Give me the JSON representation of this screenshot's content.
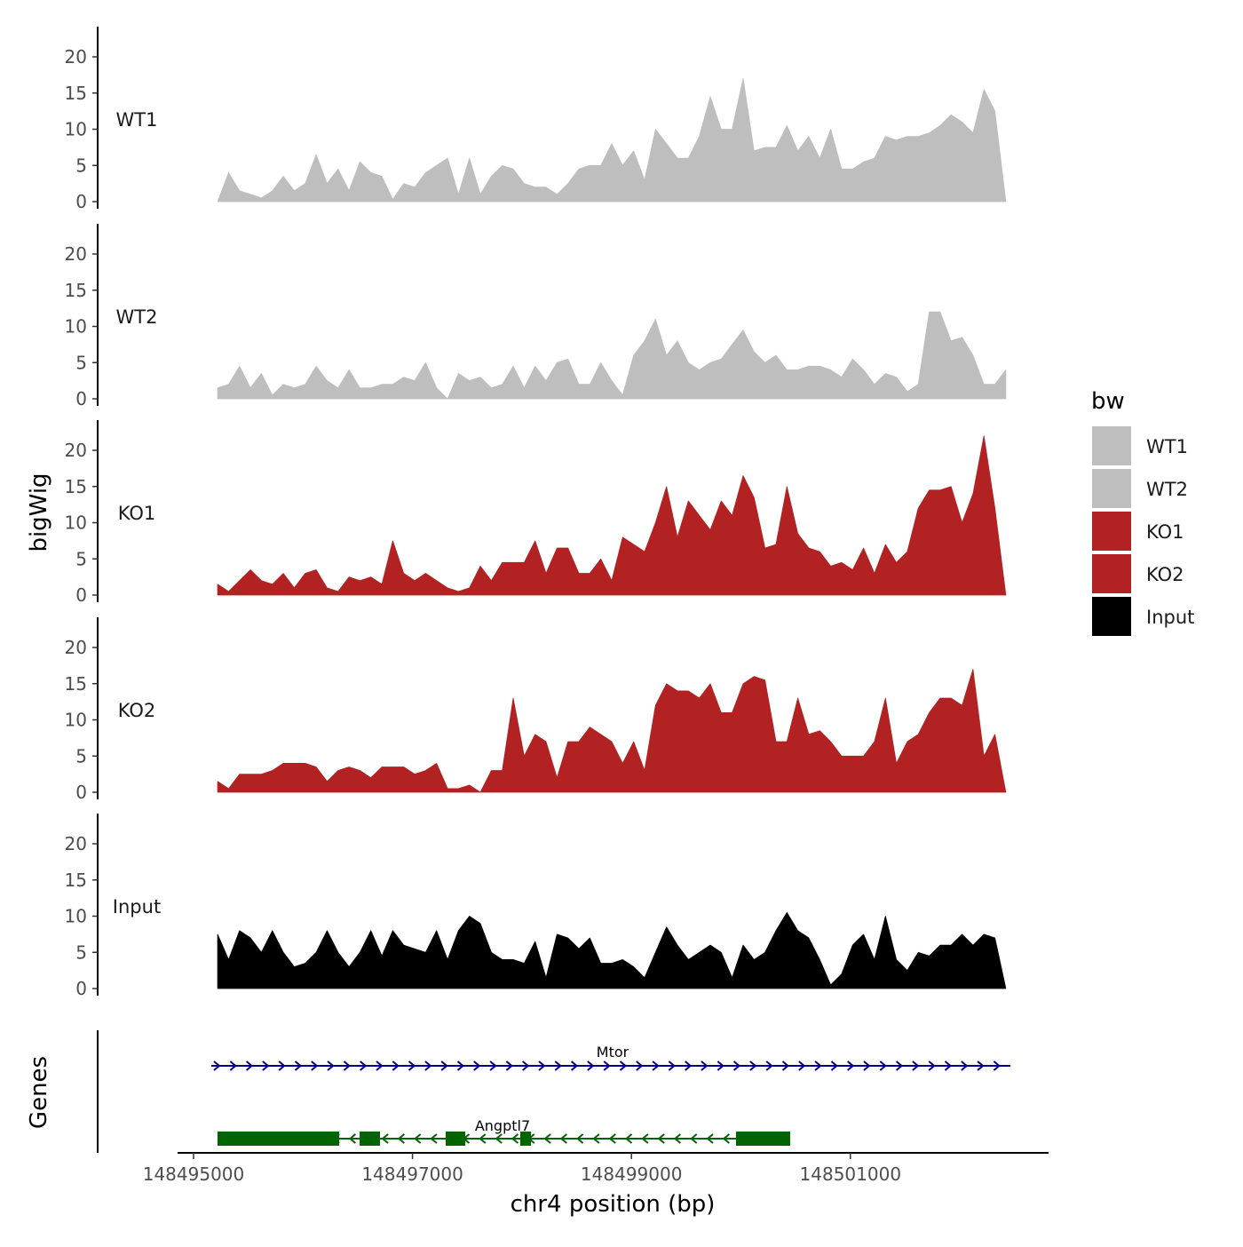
{
  "chart_data": {
    "type": "area",
    "ylabel": "bigWig",
    "xlabel": "chr4 position (bp)",
    "genes_label": "Genes",
    "ylim": [
      0,
      24
    ],
    "yticks": [
      "0",
      "5",
      "10",
      "15",
      "20"
    ],
    "xlim": [
      148494850,
      148503000
    ],
    "xticks": [
      148495000,
      148497000,
      148499000,
      148501000
    ],
    "xtick_labels": [
      "148495000",
      "148497000",
      "148499000",
      "148501000"
    ],
    "x_start": 148495220,
    "x_end": 148502420,
    "legend": {
      "title": "bw",
      "position": "right",
      "entries": [
        {
          "label": "WT1",
          "color": "#bebebe"
        },
        {
          "label": "WT2",
          "color": "#bebebe"
        },
        {
          "label": "KO1",
          "color": "#b22222"
        },
        {
          "label": "KO2",
          "color": "#b22222"
        },
        {
          "label": "Input",
          "color": "#000000"
        }
      ]
    },
    "series": [
      {
        "name": "WT1",
        "color": "#bebebe",
        "values": [
          0,
          4,
          1.5,
          1,
          0.5,
          1.5,
          3.5,
          1.5,
          2.5,
          6.5,
          2.5,
          4.5,
          1.5,
          5.5,
          4,
          3.5,
          0.3,
          2.5,
          2,
          4,
          5,
          6,
          1,
          6,
          1,
          3.5,
          5,
          4.5,
          2.5,
          2,
          2,
          1,
          2.5,
          4.5,
          5,
          5,
          8,
          5,
          7,
          3,
          10,
          8,
          6,
          6,
          9,
          14.5,
          10,
          10,
          17,
          7,
          7.5,
          7.5,
          10.5,
          7,
          9,
          6,
          10,
          4.5,
          4.5,
          5.5,
          6,
          9,
          8.5,
          9,
          9,
          9.5,
          10.5,
          12,
          11,
          9.5,
          15.5,
          12.5,
          0
        ]
      },
      {
        "name": "WT2",
        "color": "#bebebe",
        "values": [
          1.5,
          2,
          4.5,
          1.5,
          3.5,
          0.5,
          2,
          1.5,
          2,
          4.5,
          2.5,
          1.5,
          4,
          1.5,
          1.5,
          2,
          2,
          3,
          2.5,
          5,
          1.5,
          0,
          3.5,
          2.5,
          3,
          1.5,
          2,
          4.5,
          1.5,
          4.5,
          2.5,
          5,
          5.5,
          2,
          2,
          5,
          2.5,
          0.5,
          6,
          8,
          11,
          6,
          8,
          5,
          4,
          5,
          5.5,
          7.5,
          9.5,
          6.5,
          5,
          6,
          4,
          4,
          4.5,
          4.5,
          4,
          3,
          5.5,
          4,
          2,
          3.5,
          3,
          1,
          2,
          12,
          12,
          8,
          8.5,
          6,
          2,
          2,
          4
        ]
      },
      {
        "name": "KO1",
        "color": "#b22222",
        "values": [
          1.5,
          0.5,
          2,
          3.5,
          2,
          1.5,
          3,
          1,
          3,
          3.5,
          1,
          0.5,
          2.5,
          2,
          2.5,
          1.5,
          7.5,
          3,
          2,
          3,
          2,
          1,
          0.5,
          1,
          4,
          2,
          4.5,
          4.5,
          4.5,
          7.5,
          3,
          6.5,
          6.5,
          3,
          3,
          5,
          2,
          8,
          7,
          6,
          10,
          15,
          8,
          13,
          11,
          9,
          13,
          11,
          16.5,
          13.5,
          6.5,
          7,
          15,
          8.5,
          6.5,
          6,
          4,
          4.5,
          3.5,
          6.5,
          3,
          7,
          4.5,
          6,
          12,
          14.5,
          14.5,
          15,
          10,
          14,
          22,
          12,
          0
        ]
      },
      {
        "name": "KO2",
        "color": "#b22222",
        "values": [
          1.5,
          0.5,
          2.5,
          2.5,
          2.5,
          3,
          4,
          4,
          4,
          3.5,
          1.5,
          3,
          3.5,
          3,
          2,
          3.5,
          3.5,
          3.5,
          2.5,
          3,
          4,
          0.5,
          0.5,
          1,
          0,
          3,
          3,
          13,
          5,
          8,
          7,
          2,
          7,
          7,
          9,
          8,
          7,
          4,
          7,
          3,
          12,
          15,
          14,
          14,
          13,
          15,
          11,
          11,
          15,
          16,
          15.5,
          7,
          7,
          13,
          8,
          8.5,
          7,
          5,
          5,
          5,
          7,
          13,
          4,
          7,
          8,
          11,
          13,
          13,
          12,
          17,
          5,
          8,
          0
        ]
      },
      {
        "name": "Input",
        "color": "#000000",
        "values": [
          7.5,
          4,
          8,
          7,
          5,
          8,
          5,
          3,
          3.5,
          5,
          8,
          5,
          3,
          5,
          8,
          4.5,
          8,
          6,
          5.5,
          5,
          8,
          4,
          8,
          10,
          9,
          5,
          4,
          4,
          3.5,
          6.5,
          1.5,
          7.5,
          7,
          5.5,
          7,
          3.5,
          3.5,
          4,
          3,
          1.5,
          5,
          8.5,
          6,
          4,
          5,
          6,
          5,
          1.5,
          6,
          4,
          5,
          8,
          10.5,
          8,
          7,
          4,
          0.5,
          2,
          6,
          7.5,
          4,
          10,
          4,
          2.5,
          5,
          4.5,
          6,
          6,
          7.5,
          6,
          7.5,
          7,
          0
        ]
      }
    ],
    "genes": [
      {
        "name": "Mtor",
        "strand": "+",
        "color": "#00008b",
        "start": 148495162,
        "end": 148502461,
        "exons": []
      },
      {
        "name": "Angptl7",
        "strand": "-",
        "color": "#006400",
        "start": 148495219,
        "end": 148500450,
        "exons": [
          [
            148495219,
            148496330
          ],
          [
            148496517,
            148496703
          ],
          [
            148497303,
            148497482
          ],
          [
            148497984,
            148498082
          ],
          [
            148499955,
            148500450
          ]
        ]
      }
    ]
  }
}
